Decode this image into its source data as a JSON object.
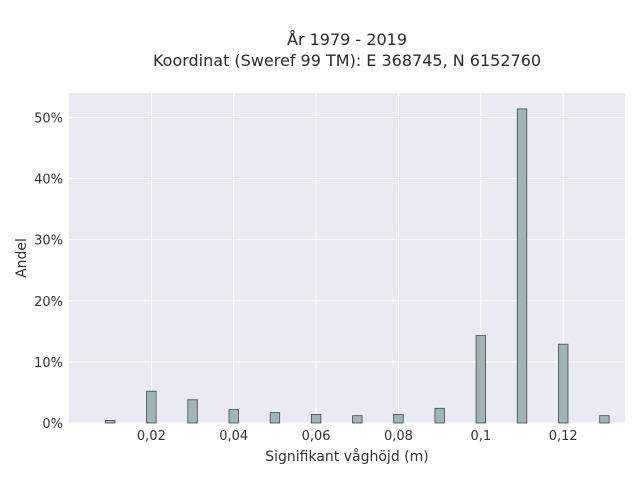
{
  "chart_data": {
    "type": "bar",
    "title_line1": "År 1979 - 2019",
    "title_line2": "Koordinat (Sweref 99 TM): E 368745, N 6152760",
    "xlabel": "Signifikant våghöjd (m)",
    "ylabel": "Andel",
    "x": [
      0.01,
      0.02,
      0.03,
      0.04,
      0.05,
      0.06,
      0.07,
      0.08,
      0.09,
      0.1,
      0.11,
      0.12,
      0.13
    ],
    "values": [
      0.4,
      5.2,
      3.8,
      2.2,
      1.7,
      1.4,
      1.2,
      1.4,
      2.4,
      14.3,
      51.4,
      12.9,
      1.2
    ],
    "xlim": [
      0.0,
      0.135
    ],
    "ylim": [
      0,
      54
    ],
    "xticks": [
      0.02,
      0.04,
      0.06,
      0.08,
      0.1,
      0.12
    ],
    "xtick_labels": [
      "0,02",
      "0,04",
      "0,06",
      "0,08",
      "0,1",
      "0,12"
    ],
    "yticks": [
      0,
      10,
      20,
      30,
      40,
      50
    ],
    "ytick_labels": [
      "0%",
      "10%",
      "20%",
      "30%",
      "40%",
      "50%"
    ],
    "grid": true,
    "colors": {
      "bar_fill": "#9fb5b6",
      "bar_stroke": "#3d4a4a",
      "plot_background": "#eaeaf2",
      "grid": "#ffffff"
    }
  }
}
